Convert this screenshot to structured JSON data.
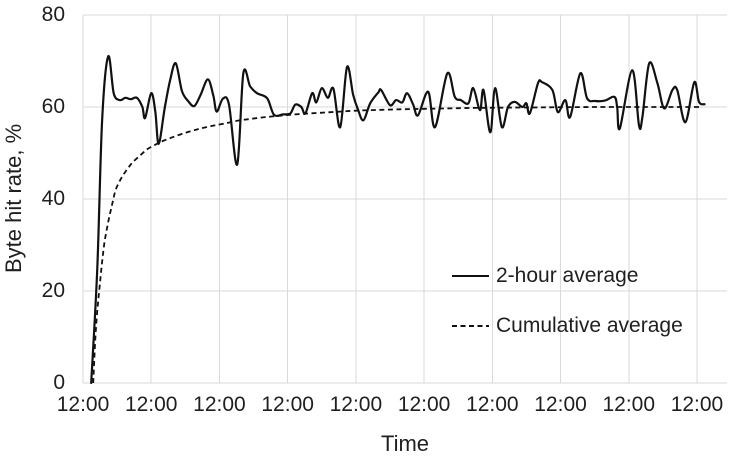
{
  "chart_data": {
    "type": "line",
    "title": "",
    "xlabel": "Time",
    "ylabel": "Byte hit rate, %",
    "x_tick_labels": [
      "12:00",
      "12:00",
      "12:00",
      "12:00",
      "12:00",
      "12:00",
      "12:00",
      "12:00",
      "12:00",
      "12:00"
    ],
    "x_range_days": [
      0,
      9.44
    ],
    "y_ticks": [
      0,
      20,
      40,
      60,
      80
    ],
    "ylim": [
      0,
      80
    ],
    "grid": true,
    "legend": {
      "position": "inside right",
      "entries": [
        "2-hour average",
        "Cumulative average"
      ]
    },
    "colors": {
      "line": "#111111",
      "grid": "#d9d9d9",
      "text": "#1f1f1f",
      "background": "#ffffff"
    },
    "series": [
      {
        "name": "2-hour average",
        "style": "solid",
        "points": [
          [
            0.12,
            0
          ],
          [
            0.21,
            25
          ],
          [
            0.28,
            57
          ],
          [
            0.37,
            71
          ],
          [
            0.45,
            63
          ],
          [
            0.54,
            61.5
          ],
          [
            0.62,
            62
          ],
          [
            0.7,
            61.7
          ],
          [
            0.79,
            62
          ],
          [
            0.87,
            60
          ],
          [
            0.91,
            57.6
          ],
          [
            1.0,
            63
          ],
          [
            1.06,
            59
          ],
          [
            1.11,
            52
          ],
          [
            1.2,
            60
          ],
          [
            1.28,
            66
          ],
          [
            1.36,
            69.5
          ],
          [
            1.45,
            63.5
          ],
          [
            1.54,
            61.3
          ],
          [
            1.63,
            60.2
          ],
          [
            1.72,
            62.5
          ],
          [
            1.83,
            66
          ],
          [
            1.91,
            62.5
          ],
          [
            1.96,
            59
          ],
          [
            2.05,
            61.8
          ],
          [
            2.14,
            60.5
          ],
          [
            2.26,
            47.5
          ],
          [
            2.35,
            67.3
          ],
          [
            2.45,
            64.5
          ],
          [
            2.55,
            63
          ],
          [
            2.7,
            61.9
          ],
          [
            2.8,
            58.3
          ],
          [
            2.93,
            58.4
          ],
          [
            3.04,
            58.6
          ],
          [
            3.11,
            60.5
          ],
          [
            3.2,
            60
          ],
          [
            3.26,
            58.6
          ],
          [
            3.36,
            63
          ],
          [
            3.42,
            61
          ],
          [
            3.5,
            64.1
          ],
          [
            3.59,
            62
          ],
          [
            3.67,
            64
          ],
          [
            3.77,
            55.6
          ],
          [
            3.87,
            68.7
          ],
          [
            3.96,
            62.6
          ],
          [
            4.03,
            59.5
          ],
          [
            4.11,
            57.1
          ],
          [
            4.21,
            60.8
          ],
          [
            4.33,
            63.2
          ],
          [
            4.37,
            63.7
          ],
          [
            4.5,
            60.4
          ],
          [
            4.59,
            61.5
          ],
          [
            4.68,
            61
          ],
          [
            4.75,
            63
          ],
          [
            4.84,
            60.5
          ],
          [
            4.91,
            58.2
          ],
          [
            5.06,
            63.3
          ],
          [
            5.16,
            55.6
          ],
          [
            5.34,
            67.3
          ],
          [
            5.45,
            62.2
          ],
          [
            5.54,
            61.5
          ],
          [
            5.65,
            60.8
          ],
          [
            5.72,
            64.1
          ],
          [
            5.82,
            59.3
          ],
          [
            5.87,
            63.7
          ],
          [
            5.97,
            54.5
          ],
          [
            6.04,
            64.1
          ],
          [
            6.14,
            55.6
          ],
          [
            6.23,
            60
          ],
          [
            6.33,
            61.1
          ],
          [
            6.44,
            60
          ],
          [
            6.5,
            60.8
          ],
          [
            6.55,
            58.6
          ],
          [
            6.67,
            65.2
          ],
          [
            6.73,
            65.4
          ],
          [
            6.88,
            63.7
          ],
          [
            6.96,
            58.9
          ],
          [
            7.07,
            61.5
          ],
          [
            7.14,
            57.8
          ],
          [
            7.29,
            67.3
          ],
          [
            7.39,
            61.9
          ],
          [
            7.51,
            61.3
          ],
          [
            7.65,
            61.4
          ],
          [
            7.79,
            62.2
          ],
          [
            7.83,
            59.9
          ],
          [
            7.87,
            55.4
          ],
          [
            8.05,
            68
          ],
          [
            8.15,
            56
          ],
          [
            8.2,
            57.8
          ],
          [
            8.3,
            69.5
          ],
          [
            8.42,
            65.2
          ],
          [
            8.52,
            59.7
          ],
          [
            8.64,
            63.7
          ],
          [
            8.71,
            63.7
          ],
          [
            8.83,
            56.7
          ],
          [
            8.96,
            65.4
          ],
          [
            9.03,
            61.1
          ],
          [
            9.11,
            60.6
          ]
        ]
      },
      {
        "name": "Cumulative average",
        "style": "dashed",
        "points": [
          [
            0.15,
            0
          ],
          [
            0.19,
            12
          ],
          [
            0.25,
            22
          ],
          [
            0.31,
            30
          ],
          [
            0.37,
            35
          ],
          [
            0.43,
            39
          ],
          [
            0.48,
            42
          ],
          [
            0.56,
            44.5
          ],
          [
            0.65,
            46.5
          ],
          [
            0.73,
            48
          ],
          [
            0.84,
            49.5
          ],
          [
            0.94,
            50.8
          ],
          [
            1.06,
            51.8
          ],
          [
            1.17,
            52.6
          ],
          [
            1.29,
            53.3
          ],
          [
            1.42,
            54
          ],
          [
            1.57,
            54.7
          ],
          [
            1.72,
            55.3
          ],
          [
            1.89,
            55.9
          ],
          [
            2.07,
            56.4
          ],
          [
            2.26,
            57
          ],
          [
            2.45,
            57.4
          ],
          [
            2.67,
            57.8
          ],
          [
            2.89,
            58.1
          ],
          [
            3.11,
            58.4
          ],
          [
            3.33,
            58.6
          ],
          [
            3.55,
            58.8
          ],
          [
            3.77,
            59
          ],
          [
            4.0,
            59.2
          ],
          [
            4.28,
            59.35
          ],
          [
            4.65,
            59.5
          ],
          [
            5.01,
            59.6
          ],
          [
            5.38,
            59.7
          ],
          [
            5.75,
            59.8
          ],
          [
            6.11,
            59.85
          ],
          [
            6.55,
            59.9
          ],
          [
            6.99,
            59.95
          ],
          [
            7.58,
            60
          ],
          [
            8.17,
            60
          ],
          [
            8.75,
            60
          ],
          [
            9.05,
            60
          ]
        ]
      }
    ]
  }
}
